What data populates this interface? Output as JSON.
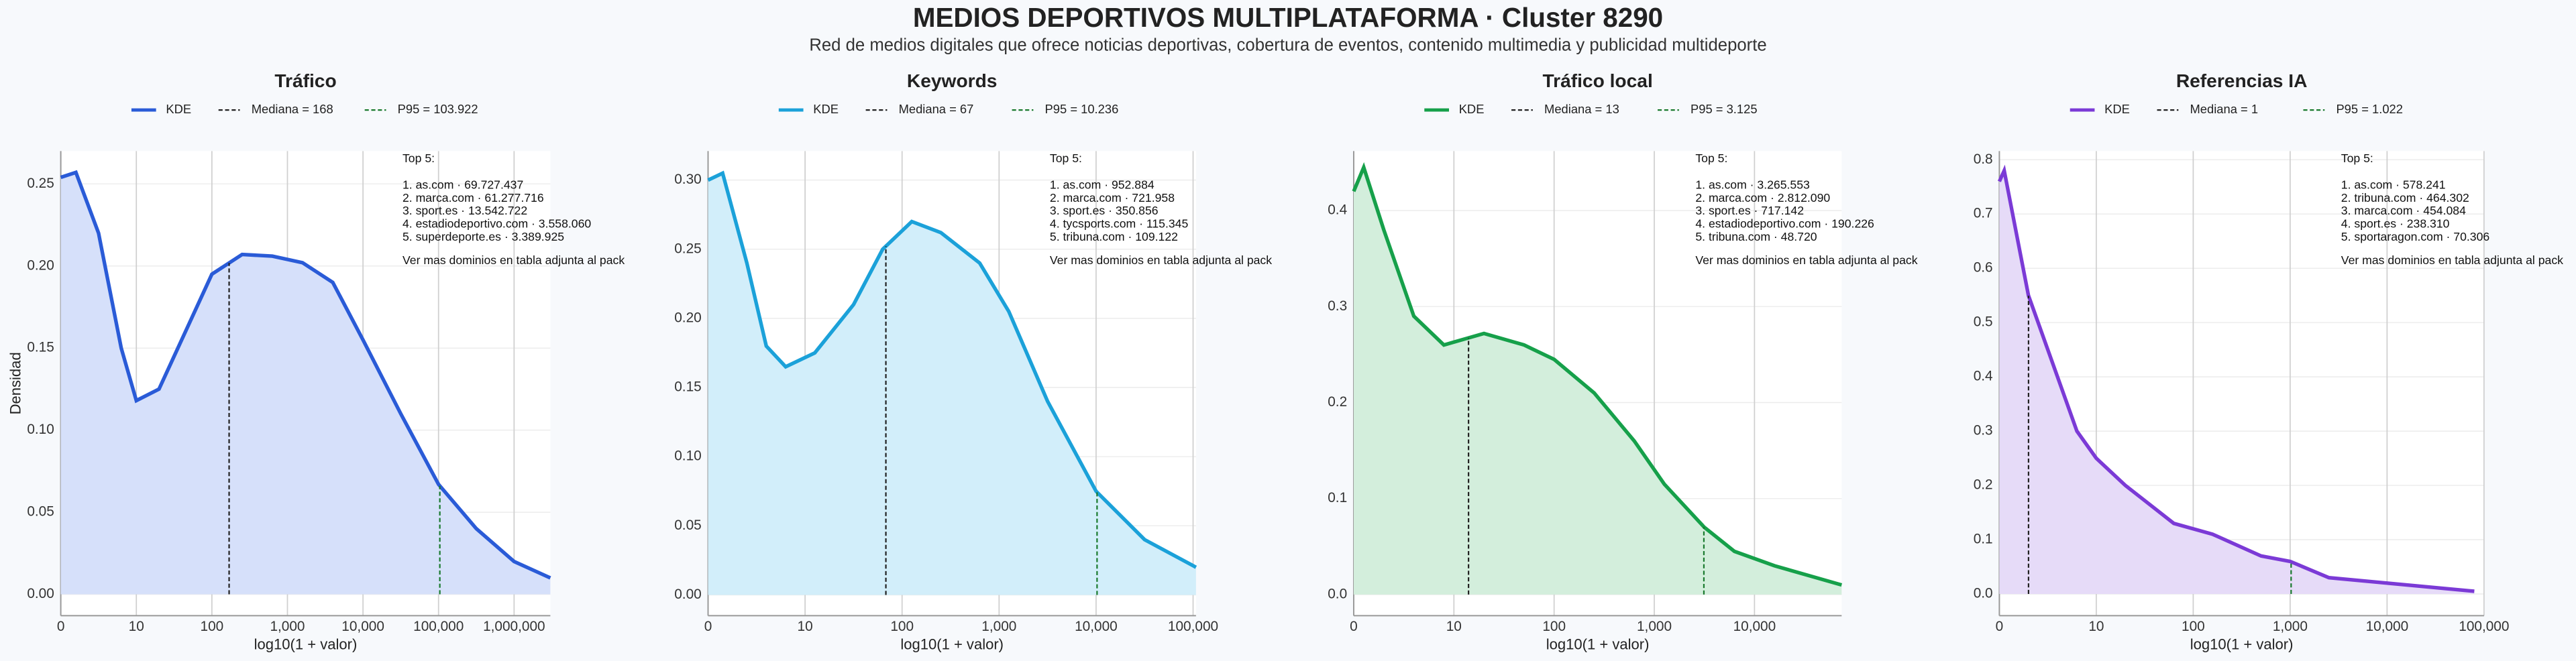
{
  "title": "MEDIOS DEPORTIVOS MULTIPLATAFORMA · Cluster 8290",
  "subtitle": "Red de medios digitales que ofrece noticias deportivas, cobertura de eventos, contenido multimedia y publicidad multideporte",
  "chart_data": [
    {
      "type": "kde",
      "title": "Tráfico",
      "x_label": "log10(1 + valor)",
      "y_label": "Densidad",
      "x": [
        0,
        0.2,
        0.5,
        0.8,
        1.0,
        1.3,
        1.7,
        2.0,
        2.4,
        2.8,
        3.2,
        3.6,
        4.0,
        4.5,
        5.0,
        5.5,
        6.0,
        6.48
      ],
      "series": [
        {
          "name": "KDE",
          "color": "#2a5bd7",
          "fill": "#d6e0fa",
          "values": [
            0.254,
            0.257,
            0.22,
            0.15,
            0.118,
            0.125,
            0.165,
            0.195,
            0.207,
            0.206,
            0.202,
            0.19,
            0.155,
            0.11,
            0.067,
            0.04,
            0.02,
            0.01
          ]
        }
      ],
      "reference_lines": [
        {
          "name": "Mediana = 168",
          "x": 2.228,
          "color": "#222222"
        },
        {
          "name": "P95 = 103.922",
          "x": 5.017,
          "color": "#1a7a2e"
        }
      ],
      "xlim": [
        0,
        6.48
      ],
      "ylim": [
        -0.013,
        0.27
      ],
      "xticks": [
        0,
        {
          "value": 1,
          "label": "10"
        },
        {
          "value": 2,
          "label": "100"
        },
        {
          "value": 3,
          "label": "1,000"
        },
        {
          "value": 4,
          "label": "10,000"
        },
        {
          "value": 5,
          "label": "100,000"
        },
        {
          "value": 6,
          "label": "1,000,000"
        }
      ],
      "yticks": [
        {
          "value": 0,
          "label": "0.00"
        },
        {
          "value": 0.05,
          "label": "0.05"
        },
        {
          "value": 0.1,
          "label": "0.10"
        },
        {
          "value": 0.15,
          "label": "0.15"
        },
        {
          "value": 0.2,
          "label": "0.20"
        },
        {
          "value": 0.25,
          "label": "0.25"
        }
      ],
      "grid": true,
      "annotation": {
        "heading": "Top 5:",
        "items": [
          "1. as.com · 69.727.437",
          "2. marca.com · 61.277.716",
          "3. sport.es · 13.542.722",
          "4. estadiodeportivo.com · 3.558.060",
          "5. superdeporte.es · 3.389.925"
        ],
        "footer": "Ver mas dominios en tabla adjunta al pack"
      }
    },
    {
      "type": "kde",
      "title": "Keywords",
      "x_label": "log10(1 + valor)",
      "x": [
        0,
        0.15,
        0.4,
        0.6,
        0.8,
        1.1,
        1.5,
        1.8,
        2.1,
        2.4,
        2.8,
        3.1,
        3.5,
        4.0,
        4.5,
        5.03
      ],
      "series": [
        {
          "name": "KDE",
          "color": "#1ba1d9",
          "fill": "#d2eefa",
          "values": [
            0.3,
            0.305,
            0.24,
            0.18,
            0.165,
            0.175,
            0.21,
            0.25,
            0.27,
            0.262,
            0.24,
            0.205,
            0.14,
            0.075,
            0.04,
            0.02
          ]
        }
      ],
      "reference_lines": [
        {
          "name": "Mediana = 67",
          "x": 1.833,
          "color": "#222222"
        },
        {
          "name": "P95 = 10.236",
          "x": 4.01,
          "color": "#1a7a2e"
        }
      ],
      "xlim": [
        0,
        5.03
      ],
      "ylim": [
        -0.015,
        0.321
      ],
      "xticks": [
        0,
        {
          "value": 1,
          "label": "10"
        },
        {
          "value": 2,
          "label": "100"
        },
        {
          "value": 3,
          "label": "1,000"
        },
        {
          "value": 4,
          "label": "10,000"
        },
        {
          "value": 5,
          "label": "100,000"
        }
      ],
      "yticks": [
        {
          "value": 0,
          "label": "0.00"
        },
        {
          "value": 0.05,
          "label": "0.05"
        },
        {
          "value": 0.1,
          "label": "0.10"
        },
        {
          "value": 0.15,
          "label": "0.15"
        },
        {
          "value": 0.2,
          "label": "0.20"
        },
        {
          "value": 0.25,
          "label": "0.25"
        },
        {
          "value": 0.3,
          "label": "0.30"
        }
      ],
      "grid": true,
      "annotation": {
        "heading": "Top 5:",
        "items": [
          "1. as.com · 952.884",
          "2. marca.com · 721.958",
          "3. sport.es · 350.856",
          "4. tycsports.com · 115.345",
          "5. tribuna.com · 109.122"
        ],
        "footer": "Ver mas dominios en tabla adjunta al pack"
      }
    },
    {
      "type": "kde",
      "title": "Tráfico local",
      "x_label": "log10(1 + valor)",
      "x": [
        0,
        0.1,
        0.3,
        0.6,
        0.9,
        1.3,
        1.7,
        2.0,
        2.4,
        2.8,
        3.1,
        3.5,
        3.8,
        4.2,
        4.87
      ],
      "series": [
        {
          "name": "KDE",
          "color": "#16a04a",
          "fill": "#d3eedc",
          "values": [
            0.42,
            0.445,
            0.38,
            0.29,
            0.26,
            0.272,
            0.26,
            0.245,
            0.21,
            0.16,
            0.115,
            0.07,
            0.045,
            0.03,
            0.01
          ]
        }
      ],
      "reference_lines": [
        {
          "name": "Mediana = 13",
          "x": 1.146,
          "color": "#222222"
        },
        {
          "name": "P95 = 3.125",
          "x": 3.495,
          "color": "#1a7a2e"
        }
      ],
      "xlim": [
        0,
        4.87
      ],
      "ylim": [
        -0.022,
        0.462
      ],
      "xticks": [
        0,
        {
          "value": 1,
          "label": "10"
        },
        {
          "value": 2,
          "label": "100"
        },
        {
          "value": 3,
          "label": "1,000"
        },
        {
          "value": 4,
          "label": "10,000"
        }
      ],
      "yticks": [
        {
          "value": 0,
          "label": "0.0"
        },
        {
          "value": 0.1,
          "label": "0.1"
        },
        {
          "value": 0.2,
          "label": "0.2"
        },
        {
          "value": 0.3,
          "label": "0.3"
        },
        {
          "value": 0.4,
          "label": "0.4"
        }
      ],
      "grid": true,
      "annotation": {
        "heading": "Top 5:",
        "items": [
          "1. as.com · 3.265.553",
          "2. marca.com · 2.812.090",
          "3. sport.es · 717.142",
          "4. estadiodeportivo.com · 190.226",
          "5. tribuna.com · 48.720"
        ],
        "footer": "Ver mas dominios en tabla adjunta al pack"
      }
    },
    {
      "type": "kde",
      "title": "Referencias IA",
      "x_label": "log10(1 + valor)",
      "x": [
        0,
        0.05,
        0.3,
        0.8,
        1.0,
        1.3,
        1.8,
        2.2,
        2.7,
        3.0,
        3.4,
        4.0,
        4.9
      ],
      "series": [
        {
          "name": "KDE",
          "color": "#7b3ad6",
          "fill": "#e6dbf8",
          "values": [
            0.76,
            0.78,
            0.55,
            0.3,
            0.25,
            0.2,
            0.13,
            0.11,
            0.07,
            0.06,
            0.03,
            0.02,
            0.005
          ]
        }
      ],
      "reference_lines": [
        {
          "name": "Mediana = 1",
          "x": 0.301,
          "color": "#222222"
        },
        {
          "name": "P95 = 1.022",
          "x": 3.01,
          "color": "#1a7a2e"
        }
      ],
      "xlim": [
        0,
        5.0
      ],
      "ylim": [
        -0.04,
        0.816
      ],
      "xticks": [
        0,
        {
          "value": 1,
          "label": "10"
        },
        {
          "value": 2,
          "label": "100"
        },
        {
          "value": 3,
          "label": "1,000"
        },
        {
          "value": 4,
          "label": "10,000"
        },
        {
          "value": 5,
          "label": "100,000"
        }
      ],
      "yticks": [
        {
          "value": 0,
          "label": "0.0"
        },
        {
          "value": 0.1,
          "label": "0.1"
        },
        {
          "value": 0.2,
          "label": "0.2"
        },
        {
          "value": 0.3,
          "label": "0.3"
        },
        {
          "value": 0.4,
          "label": "0.4"
        },
        {
          "value": 0.5,
          "label": "0.5"
        },
        {
          "value": 0.6,
          "label": "0.6"
        },
        {
          "value": 0.7,
          "label": "0.7"
        },
        {
          "value": 0.8,
          "label": "0.8"
        }
      ],
      "grid": true,
      "annotation": {
        "heading": "Top 5:",
        "items": [
          "1. as.com · 578.241",
          "2. tribuna.com · 464.302",
          "3. marca.com · 454.084",
          "4. sport.es · 238.310",
          "5. sportaragon.com · 70.306"
        ],
        "footer": "Ver mas dominios en tabla adjunta al pack"
      }
    }
  ]
}
